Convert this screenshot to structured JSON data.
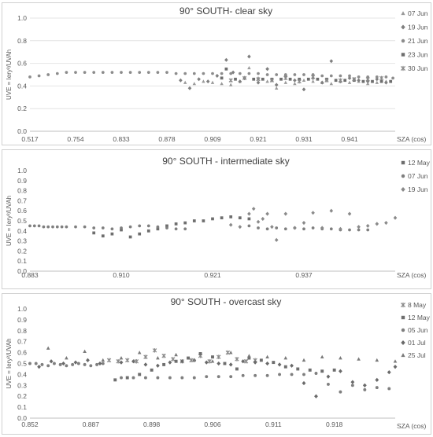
{
  "chart_data": [
    {
      "type": "scatter",
      "title": "90° SOUTH- clear sky",
      "ylabel": "UVE = Iery²/UVAh",
      "xlabel": "SZA (cos)",
      "ylim": [
        0,
        1.0
      ],
      "y_ticks": [
        "0.0",
        "0.2",
        "0.4",
        "0.6",
        "0.8",
        "1.0"
      ],
      "x_tick_labels": [
        "0.517",
        "0.754",
        "0.833",
        "0.878",
        "0.909",
        "0.921",
        "0.931",
        "0.941"
      ],
      "grid": "horizontal",
      "legend_position": "right",
      "series": [
        {
          "name": "07 Jun",
          "marker": "triangle",
          "color": "#9a9a9a",
          "x": [
            3.4,
            3.6,
            3.8,
            4.0,
            4.2,
            4.4,
            4.6,
            4.8,
            5.0,
            5.2,
            5.4,
            5.6,
            5.8,
            6.0,
            6.2,
            6.4,
            6.6,
            6.8,
            7.0,
            7.2,
            7.4,
            7.6,
            7.8
          ],
          "y": [
            0.43,
            0.42,
            0.44,
            0.43,
            0.42,
            0.41,
            0.44,
            0.56,
            0.47,
            0.44,
            0.38,
            0.43,
            0.42,
            0.45,
            0.44,
            0.43,
            0.42,
            0.44,
            0.43,
            0.44,
            0.42,
            0.43,
            0.44
          ]
        },
        {
          "name": "19 Jun",
          "marker": "diamond",
          "color": "#7f7f7f",
          "x": [
            3.3,
            3.5,
            3.7,
            3.9,
            4.1,
            4.3,
            4.45,
            4.6,
            4.8,
            5.0,
            5.2,
            5.4,
            5.6,
            5.8,
            6.0,
            6.2,
            6.4,
            6.6,
            6.8,
            7.0,
            7.2,
            7.4,
            7.6,
            7.8
          ],
          "y": [
            0.45,
            0.38,
            0.46,
            0.44,
            0.49,
            0.63,
            0.52,
            0.44,
            0.66,
            0.43,
            0.55,
            0.41,
            0.49,
            0.45,
            0.37,
            0.47,
            0.43,
            0.62,
            0.44,
            0.47,
            0.45,
            0.44,
            0.46,
            0.43
          ]
        },
        {
          "name": "21 Jun",
          "marker": "circle",
          "color": "#8c8c8c",
          "x": [
            0.0,
            0.2,
            0.4,
            0.6,
            0.8,
            1.0,
            1.2,
            1.4,
            1.6,
            1.8,
            2.0,
            2.2,
            2.4,
            2.6,
            2.8,
            3.0,
            3.2,
            3.4,
            3.6,
            3.8,
            4.0,
            4.2,
            4.4,
            4.6,
            4.8,
            5.0,
            5.2,
            5.4,
            5.6,
            5.8,
            6.0,
            6.2,
            6.4,
            6.6,
            6.8,
            7.0,
            7.2,
            7.4,
            7.6,
            7.8,
            7.95
          ],
          "y": [
            0.48,
            0.49,
            0.5,
            0.51,
            0.52,
            0.52,
            0.52,
            0.52,
            0.52,
            0.52,
            0.52,
            0.52,
            0.52,
            0.52,
            0.52,
            0.52,
            0.51,
            0.51,
            0.51,
            0.51,
            0.51,
            0.51,
            0.51,
            0.51,
            0.51,
            0.51,
            0.5,
            0.5,
            0.5,
            0.5,
            0.5,
            0.5,
            0.49,
            0.49,
            0.49,
            0.49,
            0.48,
            0.48,
            0.48,
            0.48,
            0.47
          ]
        },
        {
          "name": "23 Jun",
          "marker": "square",
          "color": "#6e6e6e",
          "x": [
            4.2,
            4.3,
            4.5,
            4.7,
            4.9,
            5.1,
            5.3,
            5.5,
            5.7,
            5.9,
            6.1,
            6.3,
            6.5,
            6.7,
            6.9,
            7.1,
            7.3,
            7.5,
            7.7,
            7.9
          ],
          "y": [
            0.47,
            0.55,
            0.46,
            0.47,
            0.46,
            0.46,
            0.46,
            0.46,
            0.46,
            0.46,
            0.46,
            0.46,
            0.46,
            0.45,
            0.45,
            0.45,
            0.44,
            0.44,
            0.44,
            0.44
          ]
        },
        {
          "name": "30 Jun",
          "marker": "asterisk",
          "color": "#8a8a8a",
          "x": [
            4.4,
            4.7,
            5.0,
            5.3,
            5.6,
            5.9,
            6.2,
            6.5,
            6.8,
            7.1,
            7.4,
            7.7
          ],
          "y": [
            0.45,
            0.47,
            0.46,
            0.45,
            0.47,
            0.44,
            0.48,
            0.45,
            0.45,
            0.46,
            0.46,
            0.47
          ]
        }
      ]
    },
    {
      "type": "scatter",
      "title": "90° SOUTH - intermediate sky",
      "ylabel": "UVE = Iery²/UVAh",
      "xlabel": "SZA (cos)",
      "ylim": [
        0,
        1.0
      ],
      "y_ticks": [
        "0.0",
        "0.1",
        "0.2",
        "0.3",
        "0.4",
        "0.5",
        "0.6",
        "0.7",
        "0.8",
        "0.9",
        "1.0"
      ],
      "x_tick_labels": [
        "0.883",
        "0.910",
        "0.921",
        "0.937"
      ],
      "grid": "none",
      "legend_position": "right",
      "series": [
        {
          "name": "12 May",
          "marker": "square",
          "color": "#6e6e6e",
          "x": [
            0.7,
            0.8,
            0.9,
            1.0,
            1.1,
            1.2,
            1.3,
            1.4,
            1.5,
            1.6,
            1.7,
            1.8,
            1.9,
            2.0,
            2.1,
            2.2,
            2.3,
            2.4
          ],
          "y": [
            0.38,
            0.35,
            0.37,
            0.41,
            0.34,
            0.37,
            0.4,
            0.42,
            0.45,
            0.47,
            0.48,
            0.5,
            0.5,
            0.52,
            0.53,
            0.54,
            0.53,
            0.52
          ]
        },
        {
          "name": "07 Jun",
          "marker": "circle",
          "color": "#7f7f7f",
          "x": [
            0.0,
            0.05,
            0.1,
            0.15,
            0.2,
            0.25,
            0.3,
            0.35,
            0.4,
            0.5,
            0.6,
            0.7,
            0.8,
            0.9,
            1.0,
            1.1,
            1.2,
            1.3,
            1.4,
            1.5,
            1.6,
            1.7,
            2.4,
            2.5,
            2.6,
            2.7,
            2.8,
            2.9,
            3.0,
            3.1,
            3.2,
            3.3,
            3.4,
            3.5,
            3.6,
            3.7
          ],
          "y": [
            0.45,
            0.45,
            0.45,
            0.44,
            0.44,
            0.44,
            0.44,
            0.44,
            0.44,
            0.44,
            0.44,
            0.43,
            0.43,
            0.42,
            0.43,
            0.44,
            0.45,
            0.45,
            0.44,
            0.43,
            0.42,
            0.42,
            0.45,
            0.43,
            0.42,
            0.43,
            0.42,
            0.43,
            0.42,
            0.43,
            0.42,
            0.42,
            0.41,
            0.41,
            0.41,
            0.41
          ]
        },
        {
          "name": "19 Jun",
          "marker": "diamond",
          "color": "#8a8a8a",
          "x": [
            2.2,
            2.3,
            2.4,
            2.45,
            2.5,
            2.55,
            2.6,
            2.65,
            2.7,
            2.8,
            2.9,
            3.0,
            3.1,
            3.2,
            3.3,
            3.4,
            3.5,
            3.6,
            3.7,
            3.8,
            3.9,
            4.0
          ],
          "y": [
            0.46,
            0.44,
            0.57,
            0.62,
            0.49,
            0.52,
            0.57,
            0.44,
            0.31,
            0.57,
            0.43,
            0.48,
            0.58,
            0.43,
            0.6,
            0.42,
            0.57,
            0.44,
            0.45,
            0.47,
            0.48,
            0.53
          ]
        }
      ]
    },
    {
      "type": "scatter",
      "title": "90° SOUTH - overcast sky",
      "ylabel": "UVE = Iery²/UVAh",
      "xlabel": "SZA (cos)",
      "ylim": [
        0,
        1.0
      ],
      "y_ticks": [
        "0.0",
        "0.1",
        "0.2",
        "0.3",
        "0.4",
        "0.5",
        "0.6",
        "0.7",
        "0.8",
        "0.9",
        "1.0"
      ],
      "x_tick_labels": [
        "0.852",
        "0.887",
        "0.898",
        "0.906",
        "0.911",
        "0.918"
      ],
      "grid": "none",
      "legend_position": "right",
      "series": [
        {
          "name": "8 May",
          "marker": "asterisk",
          "color": "#8a8a8a",
          "x": [
            1.3,
            1.45,
            1.6,
            1.75,
            1.9,
            2.05,
            2.2,
            2.35,
            2.5,
            2.65,
            2.8,
            2.95,
            3.1,
            3.25,
            3.4,
            3.55,
            3.7
          ],
          "y": [
            0.53,
            0.52,
            0.53,
            0.52,
            0.56,
            0.62,
            0.57,
            0.54,
            0.52,
            0.53,
            0.57,
            0.52,
            0.56,
            0.6,
            0.54,
            0.52,
            0.53
          ]
        },
        {
          "name": "12 May",
          "marker": "square",
          "color": "#6e6e6e",
          "x": [
            1.4,
            1.6,
            1.8,
            2.0,
            2.2,
            2.4,
            2.6,
            2.8,
            3.0,
            3.2,
            3.4,
            3.6,
            3.8,
            4.0,
            4.2,
            4.4,
            4.6,
            4.8,
            5.0
          ],
          "y": [
            0.35,
            0.37,
            0.4,
            0.44,
            0.49,
            0.52,
            0.55,
            0.59,
            0.56,
            0.5,
            0.45,
            0.55,
            0.53,
            0.51,
            0.47,
            0.45,
            0.44,
            0.43,
            0.44
          ]
        },
        {
          "name": "05 Jun",
          "marker": "circle",
          "color": "#7f7f7f",
          "x": [
            0.0,
            0.1,
            0.2,
            0.3,
            0.4,
            0.5,
            0.6,
            0.7,
            0.8,
            0.9,
            1.0,
            1.1,
            1.2,
            1.5,
            1.7,
            1.9,
            2.1,
            2.3,
            2.5,
            2.7,
            2.9,
            3.1,
            3.3,
            3.5,
            3.7,
            3.9,
            4.1,
            4.3,
            4.5,
            4.7,
            4.9,
            5.1,
            5.3,
            5.5,
            5.7,
            5.9
          ],
          "y": [
            0.5,
            0.5,
            0.49,
            0.48,
            0.5,
            0.49,
            0.48,
            0.49,
            0.5,
            0.49,
            0.48,
            0.49,
            0.5,
            0.37,
            0.37,
            0.37,
            0.37,
            0.37,
            0.37,
            0.37,
            0.38,
            0.38,
            0.38,
            0.39,
            0.39,
            0.39,
            0.4,
            0.4,
            0.4,
            0.41,
            0.31,
            0.24,
            0.3,
            0.26,
            0.28,
            0.27
          ]
        },
        {
          "name": "01 Jul",
          "marker": "diamond",
          "color": "#6a6a6a",
          "x": [
            0.15,
            0.35,
            0.55,
            0.75,
            0.95,
            1.15,
            1.5,
            1.7,
            1.9,
            2.1,
            2.3,
            2.5,
            2.7,
            2.9,
            3.1,
            3.3,
            3.5,
            3.7,
            3.9,
            4.1,
            4.3,
            4.5,
            4.7,
            4.9,
            5.1,
            5.3,
            5.5,
            5.7,
            5.9,
            6.0
          ],
          "y": [
            0.47,
            0.52,
            0.5,
            0.51,
            0.53,
            0.5,
            0.51,
            0.52,
            0.49,
            0.48,
            0.51,
            0.52,
            0.53,
            0.51,
            0.5,
            0.49,
            0.52,
            0.51,
            0.5,
            0.49,
            0.48,
            0.32,
            0.2,
            0.38,
            0.43,
            0.33,
            0.3,
            0.35,
            0.42,
            0.47
          ]
        },
        {
          "name": "25 Jul",
          "marker": "triangle",
          "color": "#7a7a7a",
          "x": [
            0.3,
            0.6,
            0.9,
            1.2,
            1.5,
            1.8,
            2.1,
            2.4,
            2.7,
            3.0,
            3.3,
            3.6,
            3.9,
            4.2,
            4.5,
            4.8,
            5.1,
            5.4,
            5.7,
            6.0
          ],
          "y": [
            0.64,
            0.55,
            0.61,
            0.53,
            0.55,
            0.6,
            0.55,
            0.58,
            0.53,
            0.52,
            0.6,
            0.57,
            0.56,
            0.55,
            0.53,
            0.56,
            0.55,
            0.54,
            0.53,
            0.52
          ]
        }
      ]
    }
  ]
}
